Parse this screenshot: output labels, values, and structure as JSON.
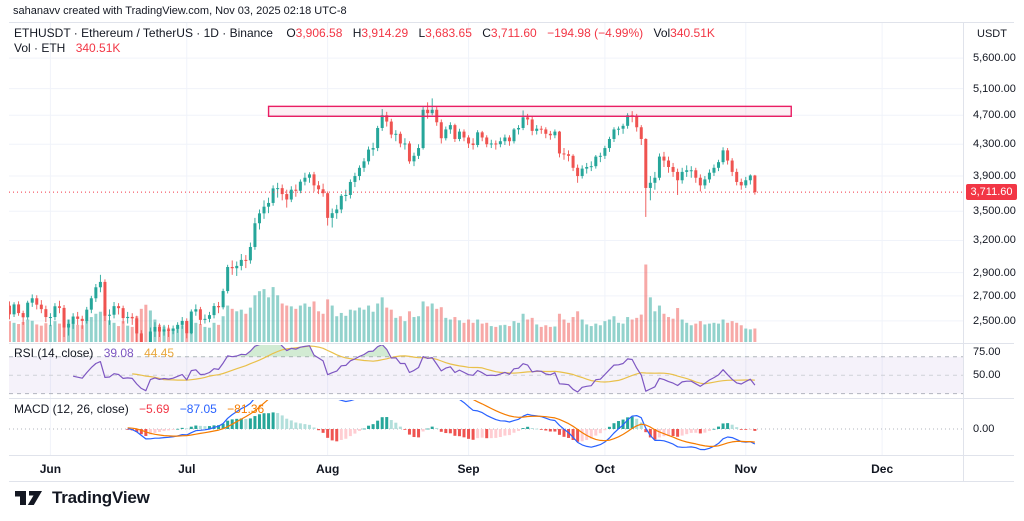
{
  "attribution": "sahanavv created with TradingView.com, Nov 03, 2025 02:18 UTC-8",
  "legend": {
    "title": "ETHUSDT · Ethereum / TetherUS · 1D · Binance",
    "o_label": "O",
    "o": "3,906.58",
    "h_label": "H",
    "h": "3,914.29",
    "l_label": "L",
    "l": "3,683.65",
    "c_label": "C",
    "c": "3,711.60",
    "change": "−194.98 (−4.99%)",
    "vol_label": "Vol",
    "vol": "340.51K",
    "row2_label": "Vol · ETH",
    "row2_value": "340.51K"
  },
  "rsi_legend": {
    "title": "RSI (14, close)",
    "value": "39.08",
    "ma_value": "44.45"
  },
  "macd_legend": {
    "title": "MACD (12, 26, close)",
    "hist": "−5.69",
    "macd": "−87.05",
    "signal": "−81.36"
  },
  "price_axis": {
    "currency": "USDT",
    "last_price": "3,711.60"
  },
  "footer": {
    "brand": "TradingView"
  },
  "colors": {
    "up": "#26a69a",
    "down": "#ef5350",
    "grid": "#f0f3fa",
    "border": "#e0e3eb",
    "last_price_line": "#f23645",
    "rsi": "#7e57c2",
    "rsi_ma": "#e9c04a",
    "rsi_band": "#7e57c2",
    "rsi_ob_fill": "#4caf50",
    "macd": "#2962ff",
    "signal": "#f57c00",
    "hist_up_strong": "#26a69a",
    "hist_up_weak": "#b2dfdb",
    "hist_dn_weak": "#ffcdd2",
    "hist_dn_strong": "#ef5350",
    "rect_stroke": "#e91e63",
    "text": "#131722"
  },
  "chart_data": {
    "type": "candlestick",
    "symbol": "ETHUSDT",
    "description": "Ethereum / TetherUS",
    "interval": "1D",
    "exchange": "Binance",
    "last_price": 3711.6,
    "y_ticks": [
      5600,
      5100,
      4700,
      4300,
      3900,
      3500,
      3200,
      2900,
      2700,
      2500
    ],
    "rsi_ticks": [
      75,
      50
    ],
    "macd_ticks": [
      0
    ],
    "x_ticks": [
      {
        "label": "Jun",
        "index": 9
      },
      {
        "label": "Jul",
        "index": 39
      },
      {
        "label": "Aug",
        "index": 70
      },
      {
        "label": "Sep",
        "index": 101
      },
      {
        "label": "Oct",
        "index": 131
      },
      {
        "label": "Nov",
        "index": 162
      },
      {
        "label": "Dec",
        "index": 192
      }
    ],
    "indicators": {
      "rsi_period": 14,
      "rsi_ma_period": 14,
      "macd_fast": 12,
      "macd_slow": 26,
      "macd_signal": 9
    },
    "rectangle": {
      "from_index": 57,
      "to_index": 172,
      "price_top": 4830,
      "price_bottom": 4685
    },
    "candles": [
      [
        2620,
        2655,
        2512,
        2551,
        520
      ],
      [
        2551,
        2648,
        2530,
        2630,
        480
      ],
      [
        2630,
        2655,
        2540,
        2561,
        450
      ],
      [
        2561,
        2580,
        2470,
        2528,
        500
      ],
      [
        2528,
        2660,
        2510,
        2644,
        560
      ],
      [
        2644,
        2712,
        2610,
        2680,
        530
      ],
      [
        2680,
        2705,
        2590,
        2628,
        440
      ],
      [
        2628,
        2665,
        2560,
        2592,
        410
      ],
      [
        2592,
        2620,
        2490,
        2530,
        470
      ],
      [
        2530,
        2560,
        2460,
        2530,
        430
      ],
      [
        2530,
        2640,
        2505,
        2615,
        520
      ],
      [
        2615,
        2660,
        2560,
        2602,
        460
      ],
      [
        2602,
        2625,
        2380,
        2450,
        780
      ],
      [
        2450,
        2510,
        2390,
        2478,
        560
      ],
      [
        2478,
        2560,
        2440,
        2534,
        490
      ],
      [
        2534,
        2570,
        2470,
        2516,
        430
      ],
      [
        2516,
        2540,
        2440,
        2500,
        420
      ],
      [
        2500,
        2610,
        2480,
        2588,
        540
      ],
      [
        2588,
        2700,
        2560,
        2680,
        620
      ],
      [
        2680,
        2800,
        2650,
        2772,
        700
      ],
      [
        2772,
        2880,
        2730,
        2818,
        750
      ],
      [
        2818,
        2840,
        2500,
        2540,
        860
      ],
      [
        2540,
        2590,
        2470,
        2548,
        540
      ],
      [
        2548,
        2650,
        2520,
        2616,
        480
      ],
      [
        2616,
        2640,
        2550,
        2600,
        400
      ],
      [
        2600,
        2620,
        2480,
        2522,
        520
      ],
      [
        2522,
        2570,
        2480,
        2531,
        410
      ],
      [
        2531,
        2560,
        2470,
        2520,
        380
      ],
      [
        2520,
        2540,
        2340,
        2406,
        640
      ],
      [
        2406,
        2430,
        2180,
        2295,
        820
      ],
      [
        2295,
        2330,
        2120,
        2230,
        920
      ],
      [
        2230,
        2450,
        2200,
        2420,
        780
      ],
      [
        2420,
        2490,
        2380,
        2454,
        560
      ],
      [
        2454,
        2480,
        2380,
        2420,
        430
      ],
      [
        2420,
        2470,
        2390,
        2436,
        390
      ],
      [
        2436,
        2470,
        2380,
        2425,
        360
      ],
      [
        2425,
        2465,
        2400,
        2440,
        350
      ],
      [
        2440,
        2490,
        2410,
        2470,
        380
      ],
      [
        2470,
        2530,
        2440,
        2500,
        420
      ],
      [
        2500,
        2520,
        2370,
        2407,
        520
      ],
      [
        2407,
        2590,
        2400,
        2573,
        560
      ],
      [
        2573,
        2630,
        2540,
        2591,
        480
      ],
      [
        2591,
        2610,
        2470,
        2508,
        450
      ],
      [
        2508,
        2550,
        2480,
        2516,
        380
      ],
      [
        2516,
        2570,
        2490,
        2545,
        360
      ],
      [
        2545,
        2640,
        2520,
        2617,
        480
      ],
      [
        2617,
        2650,
        2560,
        2607,
        430
      ],
      [
        2607,
        2760,
        2590,
        2740,
        640
      ],
      [
        2740,
        2970,
        2720,
        2950,
        900
      ],
      [
        2950,
        3010,
        2880,
        2939,
        820
      ],
      [
        2939,
        3000,
        2870,
        2960,
        760
      ],
      [
        2960,
        3070,
        2920,
        3015,
        800
      ],
      [
        3015,
        3060,
        2940,
        3011,
        700
      ],
      [
        3011,
        3180,
        2980,
        3137,
        850
      ],
      [
        3137,
        3430,
        3110,
        3374,
        1150
      ],
      [
        3374,
        3520,
        3310,
        3478,
        1250
      ],
      [
        3478,
        3620,
        3420,
        3550,
        1300
      ],
      [
        3550,
        3650,
        3480,
        3591,
        1100
      ],
      [
        3591,
        3790,
        3560,
        3755,
        1350
      ],
      [
        3755,
        3820,
        3650,
        3758,
        1150
      ],
      [
        3758,
        3800,
        3620,
        3690,
        950
      ],
      [
        3690,
        3740,
        3540,
        3629,
        900
      ],
      [
        3629,
        3780,
        3600,
        3740,
        880
      ],
      [
        3740,
        3800,
        3660,
        3728,
        820
      ],
      [
        3728,
        3860,
        3700,
        3833,
        900
      ],
      [
        3833,
        3940,
        3790,
        3880,
        950
      ],
      [
        3880,
        3945,
        3820,
        3920,
        870
      ],
      [
        3920,
        3950,
        3720,
        3790,
        1000
      ],
      [
        3790,
        3840,
        3690,
        3745,
        760
      ],
      [
        3745,
        3810,
        3660,
        3700,
        700
      ],
      [
        3700,
        3720,
        3350,
        3430,
        1050
      ],
      [
        3430,
        3530,
        3330,
        3480,
        900
      ],
      [
        3480,
        3570,
        3420,
        3520,
        640
      ],
      [
        3520,
        3690,
        3480,
        3670,
        720
      ],
      [
        3670,
        3740,
        3610,
        3680,
        650
      ],
      [
        3680,
        3860,
        3640,
        3830,
        800
      ],
      [
        3830,
        3940,
        3770,
        3900,
        780
      ],
      [
        3900,
        4030,
        3850,
        4000,
        850
      ],
      [
        4000,
        4120,
        3950,
        4080,
        800
      ],
      [
        4080,
        4270,
        4040,
        4230,
        900
      ],
      [
        4230,
        4320,
        4150,
        4250,
        750
      ],
      [
        4250,
        4550,
        4210,
        4520,
        950
      ],
      [
        4520,
        4790,
        4480,
        4700,
        1100
      ],
      [
        4700,
        4750,
        4540,
        4610,
        850
      ],
      [
        4610,
        4650,
        4380,
        4430,
        800
      ],
      [
        4430,
        4490,
        4340,
        4440,
        600
      ],
      [
        4440,
        4470,
        4260,
        4310,
        640
      ],
      [
        4310,
        4380,
        4230,
        4310,
        520
      ],
      [
        4310,
        4340,
        4050,
        4080,
        760
      ],
      [
        4080,
        4190,
        4020,
        4150,
        620
      ],
      [
        4150,
        4300,
        4110,
        4250,
        640
      ],
      [
        4250,
        4820,
        4230,
        4780,
        1000
      ],
      [
        4780,
        4890,
        4650,
        4730,
        880
      ],
      [
        4730,
        4950,
        4700,
        4780,
        950
      ],
      [
        4780,
        4820,
        4550,
        4600,
        820
      ],
      [
        4600,
        4640,
        4310,
        4380,
        860
      ],
      [
        4380,
        4540,
        4350,
        4500,
        600
      ],
      [
        4500,
        4600,
        4440,
        4560,
        560
      ],
      [
        4560,
        4580,
        4330,
        4370,
        620
      ],
      [
        4370,
        4510,
        4340,
        4470,
        540
      ],
      [
        4470,
        4500,
        4340,
        4390,
        480
      ],
      [
        4390,
        4420,
        4250,
        4310,
        560
      ],
      [
        4310,
        4380,
        4230,
        4290,
        480
      ],
      [
        4290,
        4490,
        4260,
        4460,
        560
      ],
      [
        4460,
        4480,
        4340,
        4390,
        460
      ],
      [
        4390,
        4420,
        4260,
        4300,
        480
      ],
      [
        4300,
        4360,
        4250,
        4310,
        400
      ],
      [
        4310,
        4350,
        4230,
        4300,
        380
      ],
      [
        4300,
        4390,
        4260,
        4340,
        420
      ],
      [
        4340,
        4430,
        4290,
        4390,
        430
      ],
      [
        4390,
        4420,
        4280,
        4340,
        400
      ],
      [
        4340,
        4520,
        4310,
        4500,
        520
      ],
      [
        4500,
        4560,
        4430,
        4520,
        480
      ],
      [
        4520,
        4770,
        4490,
        4670,
        700
      ],
      [
        4670,
        4720,
        4560,
        4640,
        560
      ],
      [
        4640,
        4680,
        4420,
        4480,
        600
      ],
      [
        4480,
        4560,
        4430,
        4510,
        440
      ],
      [
        4510,
        4550,
        4440,
        4500,
        380
      ],
      [
        4500,
        4530,
        4380,
        4440,
        420
      ],
      [
        4440,
        4480,
        4360,
        4420,
        380
      ],
      [
        4420,
        4500,
        4380,
        4470,
        390
      ],
      [
        4470,
        4480,
        4130,
        4180,
        700
      ],
      [
        4180,
        4250,
        4100,
        4170,
        560
      ],
      [
        4170,
        4220,
        4080,
        4150,
        480
      ],
      [
        4150,
        4170,
        3960,
        4000,
        620
      ],
      [
        4000,
        4040,
        3820,
        3900,
        760
      ],
      [
        3900,
        4030,
        3870,
        3990,
        560
      ],
      [
        3990,
        4060,
        3930,
        4010,
        440
      ],
      [
        4010,
        4080,
        3960,
        4020,
        400
      ],
      [
        4020,
        4160,
        3990,
        4140,
        460
      ],
      [
        4140,
        4190,
        4070,
        4150,
        420
      ],
      [
        4150,
        4280,
        4110,
        4250,
        520
      ],
      [
        4250,
        4400,
        4200,
        4370,
        560
      ],
      [
        4370,
        4530,
        4330,
        4500,
        640
      ],
      [
        4500,
        4540,
        4420,
        4510,
        480
      ],
      [
        4510,
        4580,
        4440,
        4550,
        460
      ],
      [
        4550,
        4730,
        4510,
        4700,
        620
      ],
      [
        4700,
        4760,
        4600,
        4690,
        560
      ],
      [
        4690,
        4720,
        4470,
        4530,
        600
      ],
      [
        4530,
        4560,
        4290,
        4370,
        680
      ],
      [
        4370,
        4380,
        3440,
        3760,
        1900
      ],
      [
        3760,
        3900,
        3620,
        3820,
        1100
      ],
      [
        3820,
        3950,
        3740,
        3880,
        760
      ],
      [
        3880,
        4180,
        3850,
        4140,
        900
      ],
      [
        4140,
        4200,
        4010,
        4090,
        700
      ],
      [
        4090,
        4140,
        3940,
        4010,
        620
      ],
      [
        4010,
        4060,
        3890,
        3950,
        580
      ],
      [
        3950,
        3990,
        3680,
        3850,
        840
      ],
      [
        3850,
        4000,
        3810,
        3950,
        560
      ],
      [
        3950,
        4030,
        3890,
        3970,
        480
      ],
      [
        3970,
        4020,
        3880,
        3970,
        420
      ],
      [
        3970,
        4000,
        3820,
        3880,
        460
      ],
      [
        3880,
        3920,
        3720,
        3790,
        520
      ],
      [
        3790,
        3900,
        3750,
        3860,
        440
      ],
      [
        3860,
        3980,
        3820,
        3940,
        460
      ],
      [
        3940,
        4040,
        3900,
        4000,
        480
      ],
      [
        4000,
        4100,
        3960,
        4070,
        460
      ],
      [
        4070,
        4260,
        4040,
        4220,
        560
      ],
      [
        4220,
        4250,
        4040,
        4090,
        480
      ],
      [
        4090,
        4120,
        3900,
        3950,
        520
      ],
      [
        3950,
        3990,
        3790,
        3830,
        480
      ],
      [
        3830,
        3870,
        3740,
        3790,
        420
      ],
      [
        3790,
        3890,
        3760,
        3850,
        340
      ],
      [
        3850,
        3920,
        3800,
        3907,
        320
      ],
      [
        3906.58,
        3914.29,
        3683.65,
        3711.6,
        341
      ]
    ]
  }
}
